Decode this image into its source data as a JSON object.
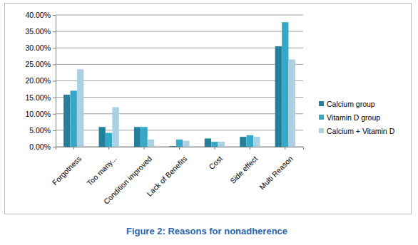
{
  "chart_data": {
    "type": "bar",
    "title": "Figure 2: Reasons for nonadherence",
    "categories": [
      "Forgotness",
      "Too many...",
      "Condition improved",
      "Lack of Benefits",
      "Cost",
      "Side effect",
      "Multi Reason"
    ],
    "series": [
      {
        "name": "Calcium group",
        "color": "#247f9b",
        "values": [
          15.8,
          6.0,
          6.0,
          0.2,
          2.5,
          3.0,
          30.5
        ]
      },
      {
        "name": "Vitamin D group",
        "color": "#35a8c8",
        "values": [
          17.0,
          4.2,
          6.0,
          2.2,
          1.5,
          3.5,
          37.8
        ]
      },
      {
        "name": "Calcium + Vitamin D",
        "color": "#aad0e2",
        "values": [
          23.5,
          12.0,
          2.2,
          1.8,
          1.5,
          3.0,
          26.5
        ]
      }
    ],
    "ylim": [
      0,
      40
    ],
    "yticks": [
      {
        "value": 0,
        "label": "0.00%"
      },
      {
        "value": 5,
        "label": "5.00%"
      },
      {
        "value": 10,
        "label": "10.00%"
      },
      {
        "value": 15,
        "label": "15.00%"
      },
      {
        "value": 20,
        "label": "20.00%"
      },
      {
        "value": 25,
        "label": "25.00%"
      },
      {
        "value": 30,
        "label": "30.00%"
      },
      {
        "value": 35,
        "label": "35.00%"
      },
      {
        "value": 40,
        "label": "40.00%"
      }
    ],
    "grid": true,
    "legend": "right"
  }
}
